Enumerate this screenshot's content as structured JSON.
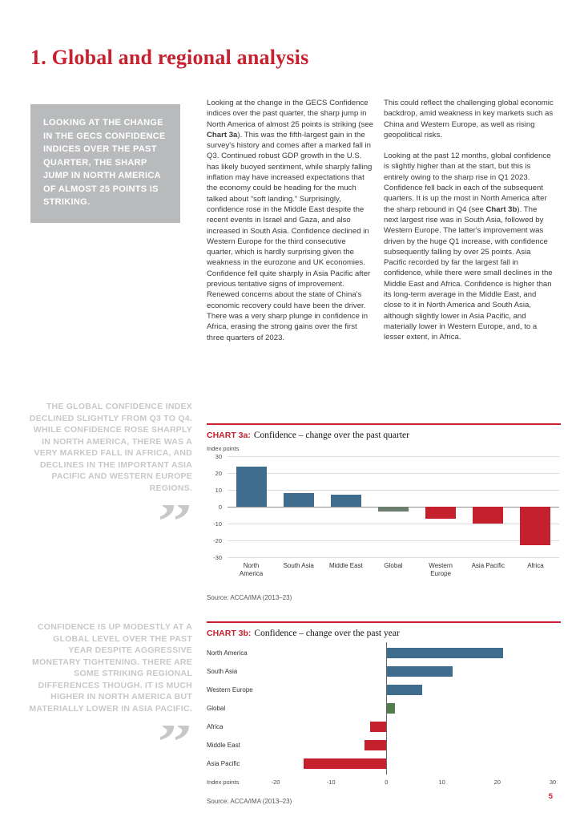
{
  "page": {
    "title": "1. Global and regional analysis",
    "page_number": "5"
  },
  "colors": {
    "accent_red": "#c8202e",
    "bar_blue": "#3e6d8e",
    "bar_red": "#c5202e",
    "bar_green_3a": "#6b7e6d",
    "bar_green_3b": "#527d4f",
    "callout_gray": "#b8babc",
    "pullquote_gray": "#c6c8ca"
  },
  "callout": {
    "text": "LOOKING AT THE CHANGE IN THE GECS CONFIDENCE INDICES OVER THE PAST QUARTER, THE SHARP JUMP IN NORTH AMERICA OF ALMOST 25 POINTS IS STRIKING."
  },
  "body": {
    "col1_p1": [
      {
        "text": "Looking at the change in the GECS Confidence indices over the past quarter, the sharp jump in North America of almost 25 points is striking (see "
      },
      {
        "text": "Chart 3a",
        "bold": true
      },
      {
        "text": "). This was the fifth-largest gain in the survey's history and comes after a marked fall in Q3. Continued robust GDP growth in the U.S. has likely buoyed sentiment, while sharply falling inflation may have increased expectations that the economy could be heading for the much talked about “soft landing.” Surprisingly, confidence rose in the Middle East despite the recent events in Israel and Gaza, and also increased in South Asia. Confidence declined in Western Europe for the third consecutive quarter, which is hardly surprising given the weakness in the eurozone and UK economies. Confidence fell quite sharply in Asia Pacific after previous tentative signs of improvement. Renewed concerns about the state of China's economic recovery could have been the driver. There was a very sharp plunge in confidence in Africa, erasing the strong gains over the first three quarters of 2023."
      }
    ],
    "col2_p1": [
      {
        "text": "This could reflect the challenging global economic backdrop, amid weakness in key markets such as China and Western Europe, as well as rising geopolitical risks."
      }
    ],
    "col2_p2": [
      {
        "text": "Looking at the past 12 months, global confidence is slightly higher than at the start, but this is entirely owing to the sharp rise in Q1 2023. Confidence fell back in each of the subsequent quarters. It is up the most in North America after the sharp rebound in Q4 (see "
      },
      {
        "text": "Chart 3b",
        "bold": true
      },
      {
        "text": "). The next largest rise was in South Asia, followed by Western Europe. The latter's improvement was driven by the huge Q1 increase, with confidence subsequently falling by over 25 points. Asia Pacific recorded by far the largest fall in confidence, while there were small declines in the Middle East and Africa. Confidence is higher than its long-term average in the Middle East, and close to it in North America and South Asia, although slightly lower in Asia Pacific, and materially lower in Western Europe, and, to a lesser extent, in Africa."
      }
    ]
  },
  "pullquote1": {
    "text": "THE GLOBAL CONFIDENCE INDEX DECLINED SLIGHTLY FROM Q3 TO Q4. WHILE CONFIDENCE ROSE SHARPLY IN NORTH AMERICA, THERE WAS A VERY MARKED FALL IN AFRICA, AND DECLINES IN THE IMPORTANT ASIA PACIFIC AND WESTERN EUROPE REGIONS.",
    "quote_glyph": "”"
  },
  "pullquote2": {
    "text": "CONFIDENCE IS UP MODESTLY AT A GLOBAL LEVEL OVER THE PAST YEAR DESPITE AGGRESSIVE MONETARY TIGHTENING. THERE ARE SOME STRIKING REGIONAL DIFFERENCES THOUGH. IT IS MUCH HIGHER IN NORTH AMERICA BUT MATERIALLY LOWER IN ASIA PACIFIC.",
    "quote_glyph": "”"
  },
  "chart_data": [
    {
      "id": "chart-3a",
      "type": "bar",
      "label": "CHART 3a:",
      "title": "Confidence – change over the past quarter",
      "ylabel": "Index points",
      "ylim": [
        -30,
        30
      ],
      "yticks": [
        30,
        20,
        10,
        0,
        -10,
        -20,
        -30
      ],
      "grid": true,
      "categories": [
        "North America",
        "South Asia",
        "Middle East",
        "Global",
        "Western Europe",
        "Asia Pacific",
        "Africa"
      ],
      "values": [
        24,
        8,
        7,
        -3,
        -7,
        -10,
        -23
      ],
      "colors": [
        "#3e6d8e",
        "#3e6d8e",
        "#3e6d8e",
        "#6b7e6d",
        "#c5202e",
        "#c5202e",
        "#c5202e"
      ],
      "source": "Source: ACCA/IMA (2013–23)"
    },
    {
      "id": "chart-3b",
      "type": "bar-horizontal",
      "label": "CHART 3b:",
      "title": "Confidence – change over the past year",
      "xlabel": "Index points",
      "xlim": [
        -20,
        30
      ],
      "xticks": [
        -20,
        -10,
        0,
        10,
        20,
        30
      ],
      "grid": false,
      "categories": [
        "North America",
        "South Asia",
        "Western Europe",
        "Global",
        "Africa",
        "Middle East",
        "Asia Pacific"
      ],
      "values": [
        21,
        12,
        6.5,
        1.5,
        -3,
        -4,
        -15
      ],
      "colors": [
        "#3e6d8e",
        "#3e6d8e",
        "#3e6d8e",
        "#527d4f",
        "#c5202e",
        "#c5202e",
        "#c5202e"
      ],
      "source": "Source: ACCA/IMA (2013–23)"
    }
  ]
}
